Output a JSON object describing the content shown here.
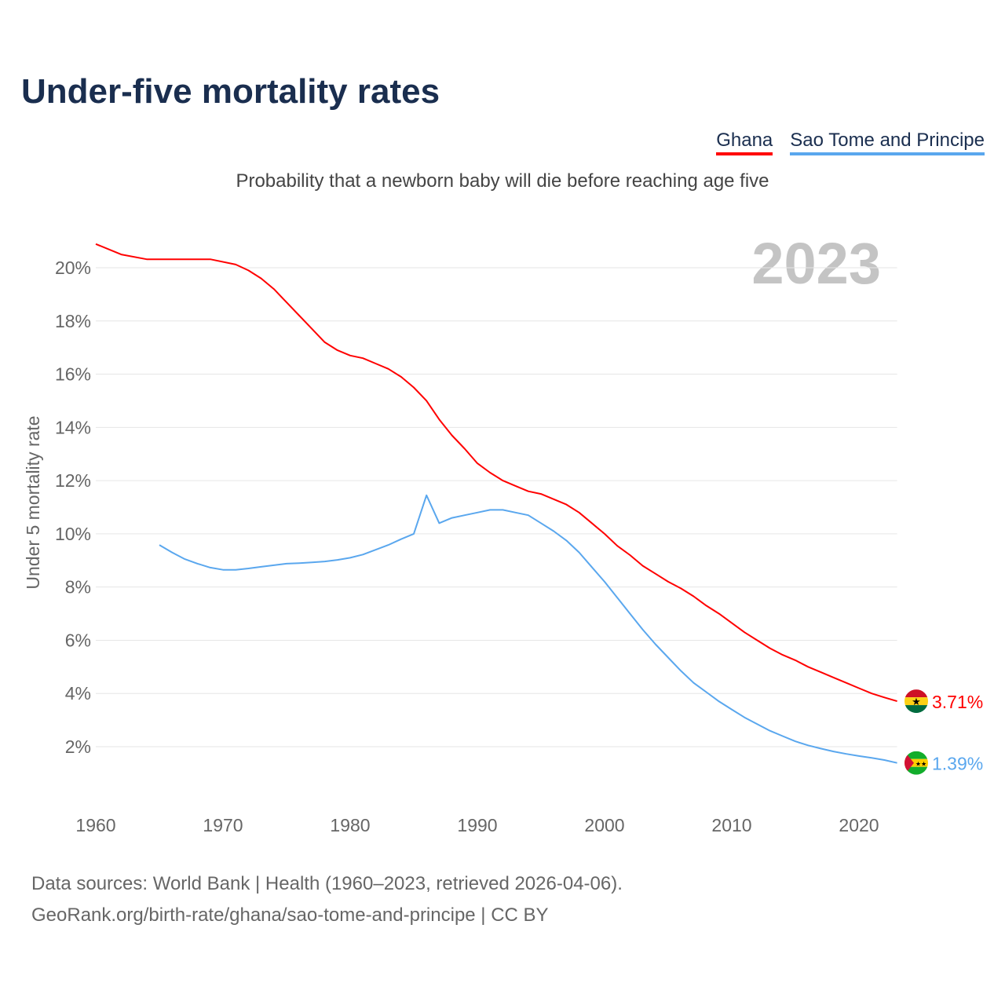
{
  "title": "Under-five mortality rates",
  "subtitle": "Probability that a newborn baby will die before reaching age five",
  "footer": {
    "line1": "Data sources: World Bank | Health (1960–2023, retrieved 2026-04-06).",
    "line2": "GeoRank.org/birth-rate/ghana/sao-tome-and-principe | CC BY"
  },
  "chart_data": {
    "type": "line",
    "title": "Under-five mortality rates",
    "ylabel": "Under 5 mortality rate",
    "xlabel": "",
    "year_label": "2023",
    "xlim": [
      1960,
      2023
    ],
    "ylim": [
      0,
      21
    ],
    "yticks": [
      2,
      4,
      6,
      8,
      10,
      12,
      14,
      16,
      18,
      20
    ],
    "ytick_labels": [
      "2%",
      "4%",
      "6%",
      "8%",
      "10%",
      "12%",
      "14%",
      "16%",
      "18%",
      "20%"
    ],
    "xticks": [
      1960,
      1970,
      1980,
      1990,
      2000,
      2010,
      2020
    ],
    "xtick_labels": [
      "1960",
      "1970",
      "1980",
      "1990",
      "2000",
      "2010",
      "2020"
    ],
    "grid": true,
    "legend": "top-right",
    "series": [
      {
        "name": "Ghana",
        "color": "#ff0000",
        "end_label": "3.71%",
        "flag": "ghana-flag",
        "x": [
          1960,
          1962,
          1964,
          1969,
          1971,
          1972,
          1973,
          1974,
          1975,
          1976,
          1977,
          1978,
          1979,
          1980,
          1981,
          1982,
          1983,
          1984,
          1985,
          1986,
          1987,
          1988,
          1989,
          1990,
          1991,
          1992,
          1993,
          1994,
          1995,
          1996,
          1997,
          1998,
          1999,
          2000,
          2001,
          2002,
          2003,
          2004,
          2005,
          2006,
          2007,
          2008,
          2009,
          2010,
          2011,
          2012,
          2013,
          2014,
          2015,
          2016,
          2017,
          2018,
          2019,
          2020,
          2021,
          2022,
          2023
        ],
        "y": [
          20.89,
          20.5,
          20.32,
          20.32,
          20.12,
          19.9,
          19.6,
          19.2,
          18.7,
          18.2,
          17.7,
          17.2,
          16.9,
          16.7,
          16.6,
          16.4,
          16.2,
          15.9,
          15.5,
          15.0,
          14.3,
          13.7,
          13.2,
          12.65,
          12.3,
          12.0,
          11.8,
          11.6,
          11.5,
          11.3,
          11.1,
          10.8,
          10.4,
          10.0,
          9.55,
          9.2,
          8.8,
          8.5,
          8.2,
          7.95,
          7.65,
          7.3,
          7.0,
          6.65,
          6.3,
          6.0,
          5.7,
          5.45,
          5.25,
          5.0,
          4.8,
          4.6,
          4.4,
          4.2,
          4.0,
          3.85,
          3.71
        ]
      },
      {
        "name": "Sao Tome and Principe",
        "color": "#5aa7ee",
        "end_label": "1.39%",
        "flag": "sao-tome-flag",
        "x": [
          1965,
          1966,
          1967,
          1968,
          1969,
          1970,
          1971,
          1972,
          1973,
          1974,
          1975,
          1976,
          1977,
          1978,
          1979,
          1980,
          1981,
          1982,
          1983,
          1984,
          1985,
          1986,
          1987,
          1988,
          1989,
          1990,
          1991,
          1992,
          1993,
          1994,
          1995,
          1996,
          1997,
          1998,
          1999,
          2000,
          2001,
          2002,
          2003,
          2004,
          2005,
          2006,
          2007,
          2008,
          2009,
          2010,
          2011,
          2012,
          2013,
          2014,
          2015,
          2016,
          2017,
          2018,
          2019,
          2020,
          2021,
          2022,
          2023
        ],
        "y": [
          9.58,
          9.3,
          9.05,
          8.88,
          8.73,
          8.65,
          8.65,
          8.7,
          8.76,
          8.82,
          8.88,
          8.9,
          8.93,
          8.96,
          9.02,
          9.1,
          9.22,
          9.4,
          9.58,
          9.8,
          10.0,
          11.45,
          10.4,
          10.6,
          10.7,
          10.8,
          10.9,
          10.9,
          10.8,
          10.7,
          10.4,
          10.1,
          9.75,
          9.3,
          8.75,
          8.2,
          7.6,
          7.0,
          6.4,
          5.85,
          5.35,
          4.85,
          4.4,
          4.05,
          3.7,
          3.4,
          3.1,
          2.85,
          2.6,
          2.4,
          2.2,
          2.05,
          1.93,
          1.82,
          1.73,
          1.65,
          1.58,
          1.5,
          1.39
        ]
      }
    ]
  }
}
